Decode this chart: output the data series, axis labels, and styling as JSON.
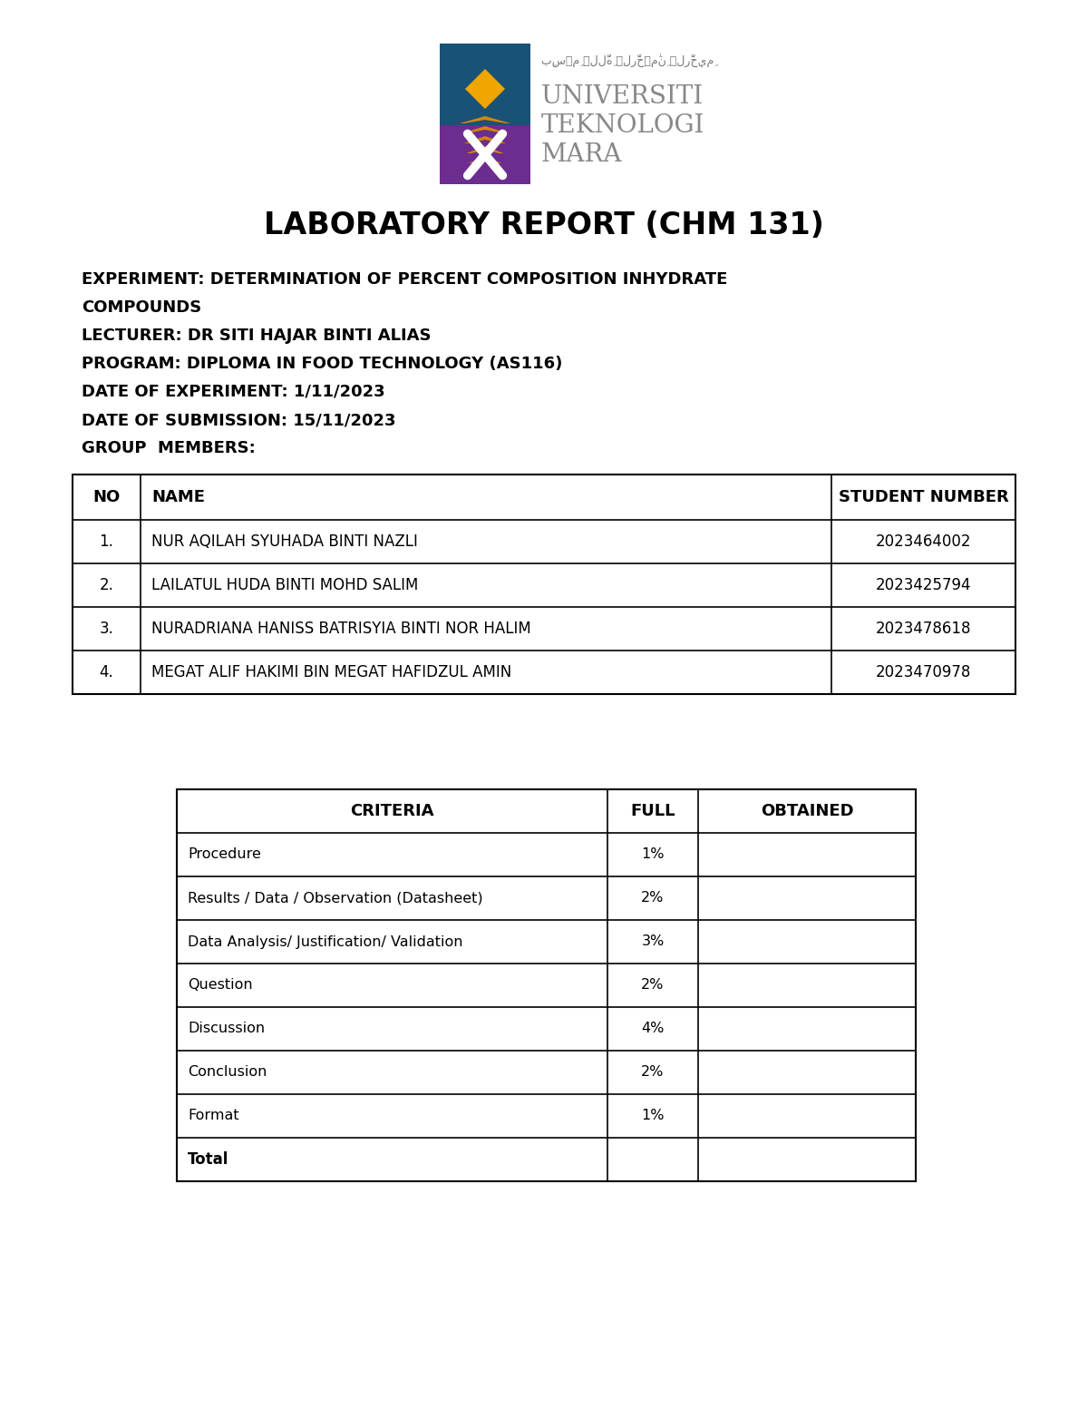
{
  "title": "LABORATORY REPORT (CHM 131)",
  "experiment_line1": "EXPERIMENT: DETERMINATION OF PERCENT COMPOSITION INHYDRATE",
  "experiment_line2": "COMPOUNDS",
  "lecturer": "LECTURER: DR SITI HAJAR BINTI ALIAS",
  "program": "PROGRAM: DIPLOMA IN FOOD TECHNOLOGY (AS116)",
  "date_exp": "DATE OF EXPERIMENT: 1/11/2023",
  "date_sub": "DATE OF SUBMISSION: 15/11/2023",
  "group": "GROUP  MEMBERS:",
  "members_headers": [
    "NO",
    "NAME",
    "STUDENT NUMBER"
  ],
  "members": [
    [
      "1.",
      "NUR AQILAH SYUHADA BINTI NAZLI",
      "2023464002"
    ],
    [
      "2.",
      "LAILATUL HUDA BINTI MOHD SALIM",
      "2023425794"
    ],
    [
      "3.",
      "NURADRIANA HANISS BATRISYIA BINTI NOR HALIM",
      "2023478618"
    ],
    [
      "4.",
      "MEGAT ALIF HAKIMI BIN MEGAT HAFIDZUL AMIN",
      "2023470978"
    ]
  ],
  "criteria_headers": [
    "CRITERIA",
    "FULL",
    "OBTAINED"
  ],
  "criteria_rows": [
    [
      "Procedure",
      "1%",
      ""
    ],
    [
      "Results / Data / Observation (Datasheet)",
      "2%",
      ""
    ],
    [
      "Data Analysis/ Justification/ Validation",
      "3%",
      ""
    ],
    [
      "Question",
      "2%",
      ""
    ],
    [
      "Discussion",
      "4%",
      ""
    ],
    [
      "Conclusion",
      "2%",
      ""
    ],
    [
      "Format",
      "1%",
      ""
    ]
  ],
  "criteria_total": "Total",
  "background": "#ffffff",
  "text_color": "#000000"
}
